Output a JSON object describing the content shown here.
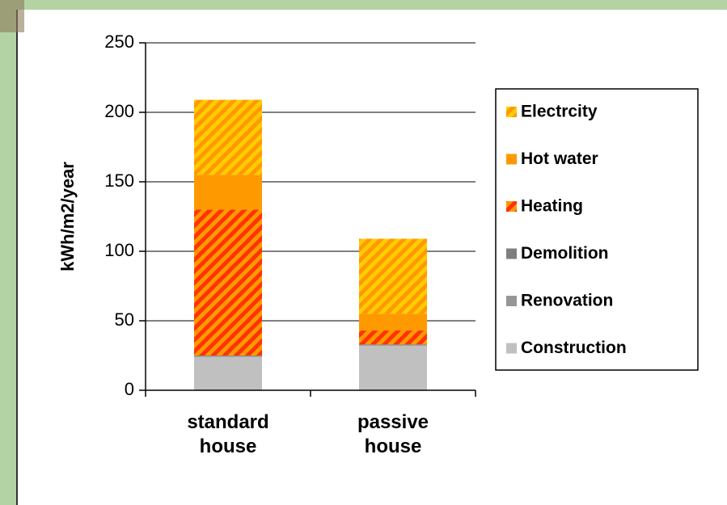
{
  "chart_data": {
    "type": "stacked_bar",
    "y_label": "kWh/m2/year",
    "categories": [
      "standard house",
      "passive house"
    ],
    "series": [
      {
        "name": "Construction",
        "color": "#c0c0c0",
        "values": [
          24,
          32
        ]
      },
      {
        "name": "Renovation",
        "color": "#969696",
        "values": [
          0.5,
          0.5
        ]
      },
      {
        "name": "Demolition",
        "color": "#7f7f7f",
        "values": [
          0.5,
          0.5
        ]
      },
      {
        "name": "Heating",
        "color": "#ff3300",
        "hatch_color": "#ff9900",
        "values": [
          105,
          10
        ]
      },
      {
        "name": "Hot water",
        "color": "#ff9900",
        "values": [
          25,
          12
        ]
      },
      {
        "name": "Electrcity",
        "color": "#ffcc00",
        "hatch_color": "#ff9900",
        "values": [
          54,
          54
        ]
      }
    ],
    "ylim": [
      0,
      250
    ],
    "yticks": [
      0,
      50,
      100,
      150,
      200,
      250
    ],
    "grid": true,
    "legend": "right"
  }
}
